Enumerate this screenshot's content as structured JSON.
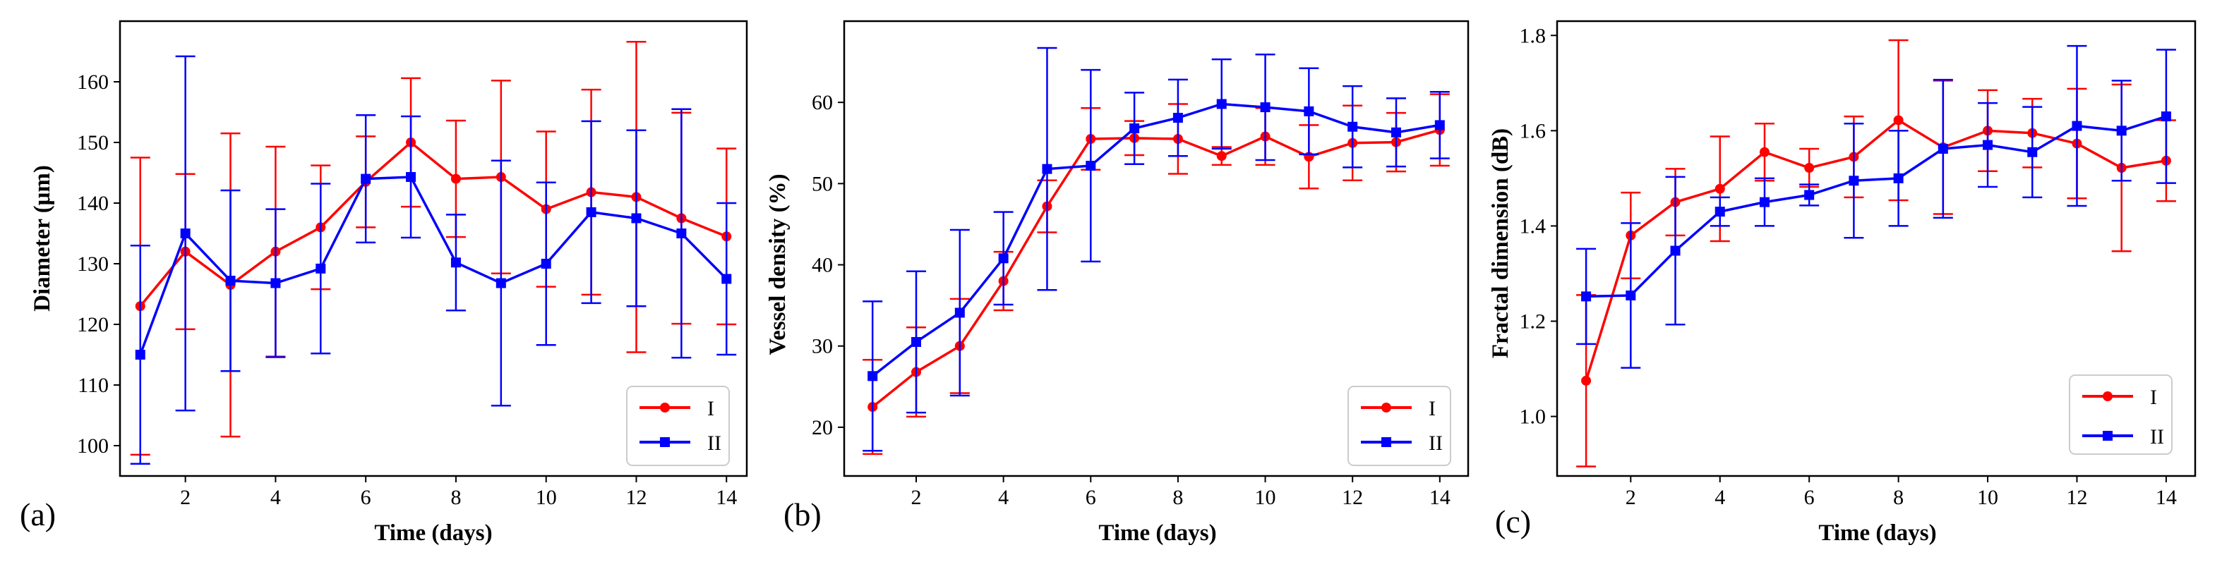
{
  "colors": {
    "series_I": "#ff0000",
    "series_II": "#0000ff",
    "axis": "#000000",
    "legend_border": "#cccccc"
  },
  "panels": [
    {
      "id": "a",
      "label": "(a)"
    },
    {
      "id": "b",
      "label": "(b)"
    },
    {
      "id": "c",
      "label": "(c)"
    }
  ],
  "chart_data": [
    {
      "type": "line",
      "panel": "(a)",
      "title": "",
      "xlabel": "Time (days)",
      "ylabel": "Diameter (μm)",
      "xlim": [
        0.55,
        14.45
      ],
      "ylim": [
        95,
        170
      ],
      "xticks": [
        2,
        4,
        6,
        8,
        10,
        12,
        14
      ],
      "yticks": [
        100,
        110,
        120,
        130,
        140,
        150,
        160
      ],
      "x": [
        1,
        2,
        3,
        4,
        5,
        6,
        7,
        8,
        9,
        10,
        11,
        12,
        13,
        14
      ],
      "legend_position": "lower-right",
      "series": [
        {
          "name": "I",
          "marker": "circle",
          "values": [
            123,
            132,
            126.5,
            132,
            136,
            143.5,
            150,
            144,
            144.3,
            139,
            141.8,
            141,
            137.5,
            134.5
          ],
          "errors": [
            24.5,
            12.8,
            25,
            17.3,
            10.2,
            7.5,
            10.6,
            9.6,
            15.9,
            12.8,
            16.9,
            25.6,
            17.4,
            14.5
          ]
        },
        {
          "name": "II",
          "marker": "square",
          "values": [
            115,
            135,
            127.2,
            126.8,
            129.2,
            144,
            144.3,
            130.2,
            126.8,
            130,
            138.5,
            137.5,
            135,
            127.5
          ],
          "errors": [
            18,
            29.2,
            14.9,
            12.2,
            14,
            10.5,
            10,
            7.9,
            20.2,
            13.4,
            15,
            14.5,
            20.5,
            12.5
          ]
        }
      ]
    },
    {
      "type": "line",
      "panel": "(b)",
      "title": "",
      "xlabel": "Time (days)",
      "ylabel": "Vessel density (%)",
      "xlim": [
        0.35,
        14.65
      ],
      "ylim": [
        14,
        70
      ],
      "xticks": [
        2,
        4,
        6,
        8,
        10,
        12,
        14
      ],
      "yticks": [
        20,
        30,
        40,
        50,
        60
      ],
      "ytick_labels": [
        "20",
        "30",
        "40",
        "50",
        "60"
      ],
      "x": [
        1,
        2,
        3,
        4,
        5,
        6,
        7,
        8,
        9,
        10,
        11,
        12,
        13,
        14
      ],
      "legend_position": "lower-right",
      "series": [
        {
          "name": "I",
          "marker": "circle",
          "values": [
            22.5,
            26.8,
            30,
            38,
            47.2,
            55.5,
            55.6,
            55.5,
            53.4,
            55.8,
            53.3,
            55,
            55.1,
            56.6
          ],
          "errors": [
            5.8,
            5.5,
            5.8,
            3.6,
            3.2,
            3.8,
            2.1,
            4.3,
            1.1,
            3.5,
            3.9,
            4.6,
            3.6,
            4.4
          ]
        },
        {
          "name": "II",
          "marker": "square",
          "values": [
            26.3,
            30.5,
            34.1,
            40.8,
            51.8,
            52.2,
            56.8,
            58.1,
            59.8,
            59.4,
            58.9,
            57,
            56.3,
            57.2
          ],
          "errors": [
            9.2,
            8.7,
            10.2,
            5.7,
            14.9,
            11.8,
            4.4,
            4.7,
            5.5,
            6.5,
            5.3,
            5,
            4.2,
            4.1
          ]
        }
      ]
    },
    {
      "type": "line",
      "panel": "(c)",
      "title": "",
      "xlabel": "Time (days)",
      "ylabel": "Fractal dimension (dB)",
      "xlim": [
        0.35,
        14.65
      ],
      "ylim": [
        0.875,
        1.83
      ],
      "xticks": [
        2,
        4,
        6,
        8,
        10,
        12,
        14
      ],
      "yticks": [
        1.0,
        1.2,
        1.4,
        1.6,
        1.8
      ],
      "ytick_labels": [
        "1.0",
        "1.2",
        "1.4",
        "1.6",
        "1.8"
      ],
      "x": [
        1,
        2,
        3,
        4,
        5,
        6,
        7,
        8,
        9,
        10,
        11,
        12,
        13,
        14
      ],
      "legend_position": "lower-right",
      "series": [
        {
          "name": "I",
          "marker": "circle",
          "values": [
            1.075,
            1.38,
            1.45,
            1.478,
            1.555,
            1.522,
            1.545,
            1.622,
            1.565,
            1.6,
            1.595,
            1.573,
            1.522,
            1.537
          ],
          "errors": [
            0.18,
            0.09,
            0.07,
            0.11,
            0.06,
            0.04,
            0.085,
            0.168,
            0.14,
            0.085,
            0.072,
            0.115,
            0.175,
            0.085
          ]
        },
        {
          "name": "II",
          "marker": "square",
          "values": [
            1.252,
            1.254,
            1.348,
            1.43,
            1.45,
            1.465,
            1.495,
            1.5,
            1.562,
            1.57,
            1.555,
            1.61,
            1.6,
            1.63
          ],
          "errors": [
            0.1,
            0.152,
            0.155,
            0.03,
            0.05,
            0.022,
            0.12,
            0.1,
            0.145,
            0.088,
            0.095,
            0.168,
            0.105,
            0.14
          ]
        }
      ]
    }
  ]
}
